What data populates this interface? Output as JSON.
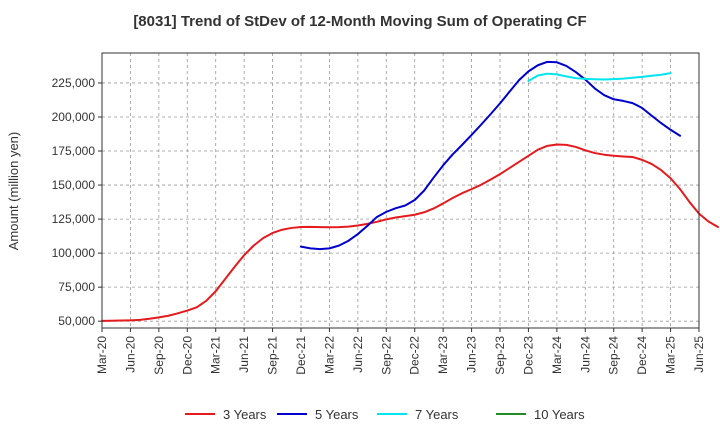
{
  "chart_data": {
    "type": "line",
    "title": "[8031]  Trend of StDev of 12-Month Moving Sum of Operating CF",
    "xlabel": "",
    "ylabel": "Amount (million yen)",
    "ylim": [
      45000,
      247000
    ],
    "yticks": [
      50000,
      75000,
      100000,
      125000,
      150000,
      175000,
      200000,
      225000
    ],
    "ytick_labels": [
      "50,000",
      "75,000",
      "100,000",
      "125,000",
      "150,000",
      "175,000",
      "200,000",
      "225,000"
    ],
    "x_labels": [
      "Mar-20",
      "Jun-20",
      "Sep-20",
      "Dec-20",
      "Mar-21",
      "Jun-21",
      "Sep-21",
      "Dec-21",
      "Mar-22",
      "Jun-22",
      "Sep-22",
      "Dec-22",
      "Mar-23",
      "Jun-23",
      "Sep-23",
      "Dec-23",
      "Mar-24",
      "Jun-24",
      "Sep-24",
      "Dec-24",
      "Mar-25",
      "Jun-25"
    ],
    "grid": true,
    "legend_position": "bottom",
    "series": [
      {
        "name": "3 Years",
        "color": "#e41a1c",
        "start_month_index": 0,
        "values": [
          50200,
          50300,
          50500,
          50600,
          51000,
          51800,
          52800,
          54000,
          55800,
          57800,
          60200,
          65000,
          72000,
          81000,
          90000,
          98500,
          105500,
          111000,
          114800,
          117200,
          118500,
          119200,
          119300,
          119100,
          119000,
          119100,
          119500,
          120300,
          121500,
          123000,
          124800,
          126200,
          127200,
          128200,
          130000,
          132800,
          136500,
          140500,
          144000,
          147000,
          150200,
          154000,
          158000,
          162500,
          167000,
          171500,
          176000,
          178800,
          179800,
          179500,
          178000,
          175500,
          173500,
          172300,
          171500,
          171000,
          170600,
          168500,
          165500,
          161000,
          155000,
          147000,
          137500,
          129000,
          123200,
          119200
        ]
      },
      {
        "name": "5 Years",
        "color": "#0000cd",
        "start_month_index": 21,
        "values": [
          104800,
          103500,
          102900,
          103500,
          105500,
          109000,
          114000,
          120000,
          126500,
          130300,
          133000,
          135000,
          139000,
          146000,
          155500,
          164500,
          172500,
          179500,
          186800,
          194300,
          202000,
          210000,
          218500,
          227000,
          233500,
          238000,
          240500,
          240200,
          237500,
          233000,
          227500,
          221000,
          216000,
          213000,
          211800,
          210200,
          206600,
          201000,
          195500,
          190600,
          186200
        ]
      },
      {
        "name": "7 Years",
        "color": "#00e5ee",
        "start_month_index": 45,
        "values": [
          226500,
          230500,
          231800,
          231300,
          229800,
          228500,
          228000,
          227700,
          227500,
          227800,
          228200,
          228800,
          229500,
          230300,
          231000,
          232200
        ]
      },
      {
        "name": "10 Years",
        "color": "#228b22",
        "start_month_index": 0,
        "values": []
      }
    ]
  }
}
